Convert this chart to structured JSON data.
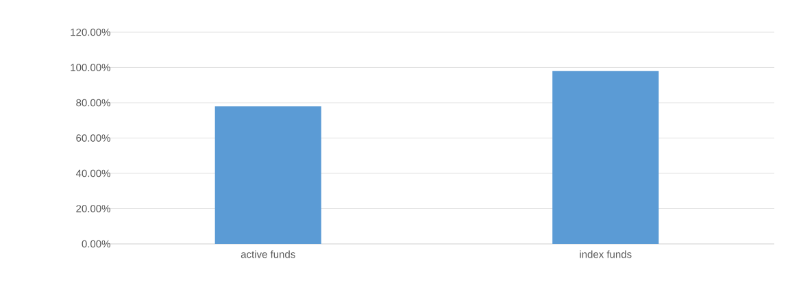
{
  "chart_data": {
    "type": "bar",
    "categories": [
      "active funds",
      "index funds"
    ],
    "values": [
      78,
      98
    ],
    "color": "#5b9bd5",
    "ylim": [
      0,
      120
    ],
    "yticks": [
      {
        "value": 0,
        "label": "0.00%"
      },
      {
        "value": 20,
        "label": "20.00%"
      },
      {
        "value": 40,
        "label": "40.00%"
      },
      {
        "value": 60,
        "label": "60.00%"
      },
      {
        "value": 80,
        "label": "80.00%"
      },
      {
        "value": 100,
        "label": "100.00%"
      },
      {
        "value": 120,
        "label": "120.00%"
      }
    ],
    "grid": "y"
  }
}
